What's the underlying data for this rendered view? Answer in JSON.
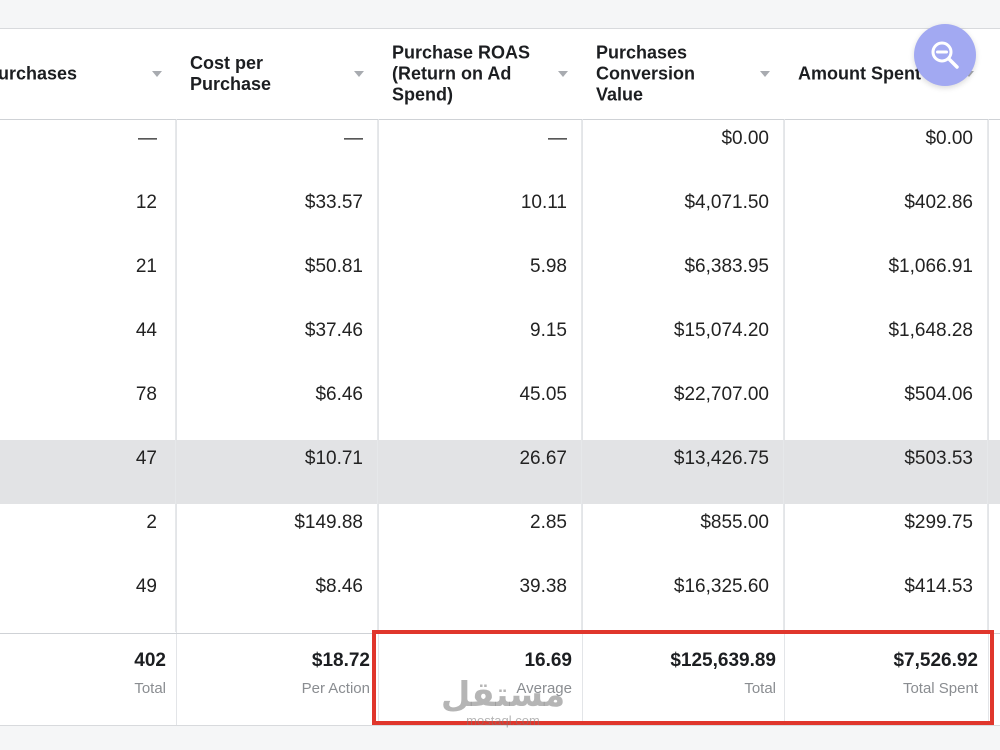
{
  "headers": [
    "urchases",
    "Cost per Purchase",
    "Purchase ROAS (Return on Ad Spend)",
    "Purchases Conversion Value",
    "Amount Spent"
  ],
  "rows": [
    [
      "—",
      "—",
      "—",
      "$0.00",
      "$0.00"
    ],
    [
      "12",
      "$33.57",
      "10.11",
      "$4,071.50",
      "$402.86"
    ],
    [
      "21",
      "$50.81",
      "5.98",
      "$6,383.95",
      "$1,066.91"
    ],
    [
      "44",
      "$37.46",
      "9.15",
      "$15,074.20",
      "$1,648.28"
    ],
    [
      "78",
      "$6.46",
      "45.05",
      "$22,707.00",
      "$504.06"
    ],
    [
      "47",
      "$10.71",
      "26.67",
      "$13,426.75",
      "$503.53"
    ],
    [
      "2",
      "$149.88",
      "2.85",
      "$855.00",
      "$299.75"
    ],
    [
      "49",
      "$8.46",
      "39.38",
      "$16,325.60",
      "$414.53"
    ]
  ],
  "highlighted_row_index": 5,
  "totals": [
    {
      "value": "402",
      "label": "Total"
    },
    {
      "value": "$18.72",
      "label": "Per Action"
    },
    {
      "value": "16.69",
      "label": "Average"
    },
    {
      "value": "$125,639.89",
      "label": "Total"
    },
    {
      "value": "$7,526.92",
      "label": "Total Spent"
    }
  ],
  "watermark": {
    "arabic": "مستقل",
    "latin": "mostaql.com"
  },
  "colors": {
    "highlight_border": "#e0362c",
    "zoom_button": "#a2a9f2",
    "row_highlight": "#e2e3e5"
  },
  "icons": {
    "zoom": "zoom-out-icon",
    "sort": "sort-caret-icon"
  }
}
